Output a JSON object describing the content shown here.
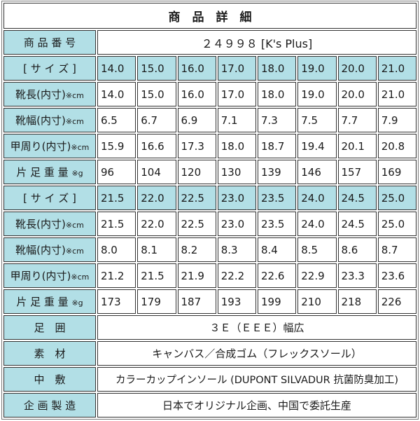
{
  "table": {
    "title": "商　品　詳　細"
  },
  "product_number": {
    "label": "商 品 番 号",
    "value": "２４９９８ [K's Plus]"
  },
  "row_labels": {
    "size": "[ サ イ ズ ]",
    "length": "靴長(内寸)",
    "length_unit": "※cm",
    "width": "靴幅(内寸)",
    "width_unit": "※cm",
    "girth": "甲周り(内寸)",
    "girth_unit": "※cm",
    "weight": "片 足 重 量",
    "weight_unit": "※g"
  },
  "size_groups": [
    {
      "sizes": [
        "14.0",
        "15.0",
        "16.0",
        "17.0",
        "18.0",
        "19.0",
        "20.0",
        "21.0"
      ],
      "length": [
        "14.0",
        "15.0",
        "16.0",
        "17.0",
        "18.0",
        "19.0",
        "20.0",
        "21.0"
      ],
      "width": [
        "6.5",
        "6.7",
        "6.9",
        "7.1",
        "7.3",
        "7.5",
        "7.7",
        "7.9"
      ],
      "girth": [
        "15.9",
        "16.6",
        "17.3",
        "18.0",
        "18.7",
        "19.4",
        "20.1",
        "20.8"
      ],
      "weight": [
        "96",
        "104",
        "120",
        "130",
        "139",
        "146",
        "157",
        "169"
      ]
    },
    {
      "sizes": [
        "21.5",
        "22.0",
        "22.5",
        "23.0",
        "23.5",
        "24.0",
        "24.5",
        "25.0"
      ],
      "length": [
        "21.5",
        "22.0",
        "22.5",
        "23.0",
        "23.5",
        "24.0",
        "24.5",
        "25.0"
      ],
      "width": [
        "8.0",
        "8.1",
        "8.2",
        "8.3",
        "8.4",
        "8.5",
        "8.6",
        "8.7"
      ],
      "girth": [
        "21.2",
        "21.5",
        "21.9",
        "22.2",
        "22.6",
        "22.9",
        "23.3",
        "23.6"
      ],
      "weight": [
        "173",
        "179",
        "187",
        "193",
        "199",
        "210",
        "218",
        "226"
      ]
    }
  ],
  "details": {
    "foot_circumference": {
      "label": "足　囲",
      "value": "３Ｅ（ＥＥＥ）幅広"
    },
    "material": {
      "label": "素　材",
      "value": "キャンバス／合成ゴム（フレックスソール）"
    },
    "insole": {
      "label": "中　敷",
      "value": "カラーカップインソール (DUPONT SILVADUR 抗菌防臭加工)"
    },
    "manufacturing": {
      "label": "企 画 製 造",
      "value": "日本でオリジナル企画、中国で委託生産"
    }
  },
  "colors": {
    "header_cell_bg": "#b2dfe6",
    "cell_border": "#333333",
    "outer_border": "#7a7a7a",
    "text": "#1a1a1a",
    "cell_bg": "#ffffff"
  }
}
